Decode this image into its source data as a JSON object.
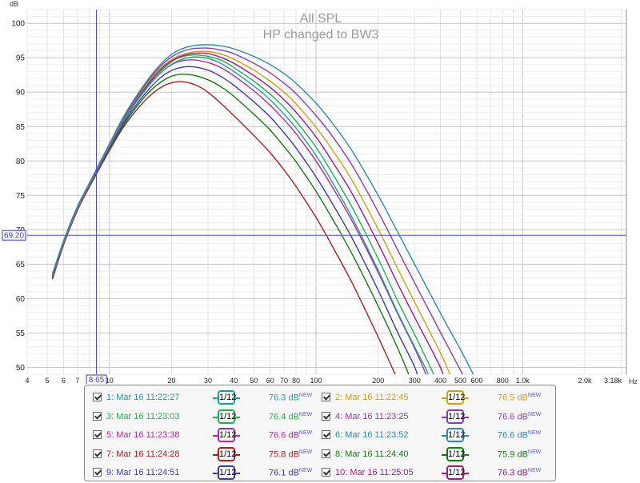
{
  "chart_data": {
    "type": "line",
    "title": "All SPL",
    "subtitle": "HP changed to BW3",
    "y_unit": "dB",
    "x_unit": "Hz",
    "x_scale": "log",
    "xlim": [
      4,
      3180
    ],
    "ylim": [
      49,
      102
    ],
    "grid": true,
    "y_ticks": [
      50,
      55,
      60,
      65,
      70,
      75,
      80,
      85,
      90,
      95,
      100
    ],
    "y_tick_labels": [
      "50",
      "55",
      "60",
      "65",
      "70",
      "75",
      "80",
      "85",
      "90",
      "95",
      "100"
    ],
    "x_ticks": [
      4,
      5,
      6,
      7,
      10,
      20,
      30,
      40,
      50,
      60,
      70,
      80,
      100,
      200,
      300,
      400,
      500,
      600,
      800,
      1000,
      2000,
      3180
    ],
    "x_tick_labels": [
      "4",
      "5",
      "6",
      "7",
      "10",
      "20",
      "30",
      "40",
      "50",
      "60",
      "70",
      "80",
      "100",
      "200",
      "300",
      "400",
      "500",
      "600",
      "800",
      "1.0k",
      "2.0k",
      "3.18k"
    ],
    "cursor": {
      "x": 8.65,
      "y": 69.2,
      "x_label": "8.65",
      "y_label": "69.20"
    },
    "series": [
      {
        "name": "1: Mar 16 11:22:27",
        "level": "76.3 dB",
        "color": "#1b9e98",
        "x": [
          5.3,
          6,
          7,
          8,
          10,
          12,
          15,
          18,
          21,
          25,
          30,
          35,
          40,
          50,
          60,
          70,
          80,
          100,
          120,
          150,
          200,
          250,
          300,
          340,
          360
        ],
        "y": [
          63.1,
          68,
          73,
          76.5,
          82.1,
          86.3,
          90.4,
          93,
          94.4,
          95.1,
          94.9,
          94.1,
          93,
          90.9,
          88.9,
          86.8,
          84.8,
          80.8,
          76.9,
          71.7,
          64.1,
          57.8,
          53,
          49.8,
          48
        ]
      },
      {
        "name": "2: Mar 16 11:22:45",
        "level": "76.5 dB",
        "color": "#c8a210",
        "x": [
          5.3,
          6,
          7,
          8,
          10,
          12,
          15,
          18,
          21,
          25,
          30,
          35,
          40,
          50,
          60,
          70,
          80,
          100,
          120,
          150,
          200,
          250,
          300,
          400,
          460
        ],
        "y": [
          63.4,
          68.2,
          73.2,
          76.6,
          82.3,
          86.7,
          91,
          93.7,
          95.1,
          95.8,
          95.9,
          95.5,
          94.8,
          93.2,
          91.6,
          90,
          88.3,
          84.9,
          81.6,
          77.1,
          70.1,
          64.2,
          59.5,
          52.1,
          48
        ]
      },
      {
        "name": "3: Mar 16 11:23:03",
        "level": "76.4 dB",
        "color": "#22b14c",
        "x": [
          5.3,
          6,
          7,
          8,
          10,
          12,
          15,
          18,
          21,
          25,
          30,
          35,
          40,
          50,
          60,
          70,
          80,
          100,
          120,
          150,
          200,
          250,
          300,
          340,
          385
        ],
        "y": [
          63.2,
          68.1,
          73.1,
          76.5,
          82.2,
          86.5,
          90.7,
          93.3,
          94.8,
          95.4,
          95.2,
          94.6,
          93.6,
          91.6,
          89.7,
          87.8,
          85.8,
          82,
          78.2,
          73.2,
          65.8,
          59.5,
          54.8,
          51.4,
          48
        ]
      },
      {
        "name": "4: Mar 16 11:23:25",
        "level": "76.6 dB",
        "color": "#8e3bb3",
        "x": [
          5.3,
          6,
          7,
          8,
          10,
          12,
          15,
          18,
          21,
          25,
          30,
          35,
          40,
          50,
          60,
          70,
          80,
          100,
          120,
          150,
          200,
          250,
          300,
          400,
          500,
          535
        ],
        "y": [
          63.5,
          68.3,
          73.3,
          76.7,
          82.4,
          86.8,
          91.2,
          94,
          95.5,
          96.3,
          96.4,
          96.1,
          95.6,
          94.2,
          92.8,
          91.3,
          89.8,
          86.6,
          83.6,
          79.3,
          72.6,
          66.9,
          62.3,
          55.1,
          49.6,
          48
        ]
      },
      {
        "name": "5: Mar 16 11:23:38",
        "level": "76.6 dB",
        "color": "#b02a9a",
        "x": [
          5.3,
          6,
          7,
          8,
          10,
          12,
          15,
          18,
          21,
          25,
          30,
          35,
          40,
          50,
          60,
          70,
          80,
          100,
          120,
          150,
          200,
          250,
          300,
          330,
          350
        ],
        "y": [
          63.3,
          68.1,
          73.1,
          76.5,
          82.1,
          86.4,
          90.5,
          93,
          94.3,
          94.7,
          94.3,
          93.5,
          92.4,
          90.2,
          88.1,
          86,
          84,
          80,
          76.2,
          71.2,
          63.8,
          57.6,
          52.8,
          50,
          48
        ]
      },
      {
        "name": "6: Mar 16 11:23:52",
        "level": "76.6 dB",
        "color": "#2a8ab0",
        "x": [
          5.3,
          6,
          7,
          8,
          10,
          12,
          15,
          18,
          21,
          25,
          30,
          35,
          40,
          50,
          60,
          70,
          80,
          100,
          120,
          150,
          200,
          250,
          300,
          400,
          500,
          600
        ],
        "y": [
          63.6,
          68.4,
          73.4,
          76.8,
          82.5,
          87,
          91.4,
          94.3,
          95.9,
          96.7,
          96.9,
          96.7,
          96.3,
          95.2,
          94,
          92.7,
          91.3,
          88.4,
          85.5,
          81.4,
          75,
          69.5,
          65,
          57.9,
          52.6,
          48
        ]
      },
      {
        "name": "7: Mar 16 11:24:28",
        "level": "75.8 dB",
        "color": "#b01e1e",
        "x": [
          5.3,
          6,
          7,
          8,
          10,
          12,
          15,
          18,
          21,
          24,
          28,
          32,
          40,
          50,
          60,
          70,
          80,
          100,
          120,
          150,
          200,
          250
        ],
        "y": [
          62.8,
          67.8,
          72.8,
          76.2,
          81.5,
          85.4,
          88.9,
          90.8,
          91.5,
          91.4,
          90.6,
          89.3,
          86.6,
          83.7,
          81.2,
          78.7,
          76.3,
          71.8,
          67.6,
          62.2,
          54.4,
          48
        ]
      },
      {
        "name": "8: Mar 16 11:24:40",
        "level": "75.9 dB",
        "color": "#137a13",
        "x": [
          5.3,
          6,
          7,
          8,
          10,
          12,
          15,
          18,
          21,
          25,
          30,
          35,
          40,
          50,
          60,
          70,
          80,
          100,
          120,
          150,
          200,
          250,
          290
        ],
        "y": [
          62.9,
          67.9,
          72.9,
          76.3,
          81.7,
          85.7,
          89.5,
          91.6,
          92.5,
          92.5,
          91.8,
          90.7,
          89.4,
          86.8,
          84.5,
          82.1,
          79.9,
          75.6,
          71.6,
          66.4,
          58.9,
          52.6,
          48
        ]
      },
      {
        "name": "9: Mar 16 11:24:51",
        "level": "76.1 dB",
        "color": "#3a3ab0",
        "x": [
          5.3,
          6,
          7,
          8,
          10,
          12,
          15,
          18,
          21,
          25,
          30,
          35,
          40,
          50,
          60,
          70,
          80,
          100,
          120,
          150,
          200,
          250,
          300,
          315
        ],
        "y": [
          63,
          68,
          73,
          76.4,
          81.9,
          86,
          89.9,
          92.3,
          93.4,
          93.7,
          93.2,
          92.2,
          91,
          88.6,
          86.4,
          84.1,
          81.9,
          77.7,
          73.8,
          68.7,
          61.2,
          54.9,
          50.1,
          48
        ]
      },
      {
        "name": "10: Mar 16 11:25:05",
        "level": "76.3 dB",
        "color": "#a3168f",
        "x": [
          5.3,
          6,
          7,
          8,
          10,
          12,
          15,
          18,
          21,
          25,
          30,
          35,
          40,
          50,
          60,
          70,
          80,
          100,
          120,
          150,
          200,
          250,
          300,
          400,
          415
        ],
        "y": [
          63.2,
          68.1,
          73.1,
          76.5,
          82.2,
          86.6,
          90.8,
          93.5,
          94.9,
          95.6,
          95.6,
          95,
          94.2,
          92.4,
          90.7,
          88.9,
          87.1,
          83.5,
          79.9,
          75.2,
          68,
          62,
          57.3,
          50,
          48
        ]
      }
    ]
  },
  "legend": {
    "smoothing_label": "1/12",
    "new_tag": "NEW"
  }
}
